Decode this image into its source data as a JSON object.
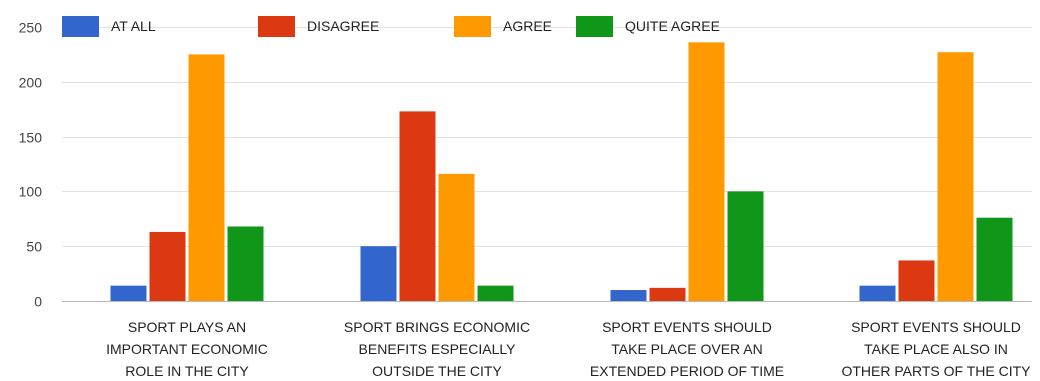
{
  "chart_data": {
    "type": "bar",
    "categories": [
      [
        "SPORT PLAYS AN",
        "IMPORTANT ECONOMIC",
        "ROLE IN THE CITY"
      ],
      [
        "SPORT BRINGS ECONOMIC",
        "BENEFITS ESPECIALLY",
        "OUTSIDE THE CITY"
      ],
      [
        "SPORT EVENTS SHOULD",
        "TAKE PLACE OVER AN",
        "EXTENDED PERIOD OF TIME"
      ],
      [
        "SPORT EVENTS SHOULD",
        "TAKE PLACE ALSO IN",
        "OTHER PARTS OF THE CITY"
      ]
    ],
    "series": [
      {
        "name": "AT ALL",
        "color": "#3366cc",
        "values": [
          14,
          50,
          10,
          14
        ]
      },
      {
        "name": "DISAGREE",
        "color": "#dc3912",
        "values": [
          63,
          173,
          12,
          37
        ]
      },
      {
        "name": "AGREE",
        "color": "#ff9900",
        "values": [
          225,
          116,
          236,
          227
        ]
      },
      {
        "name": "QUITE AGREE",
        "color": "#109618",
        "values": [
          68,
          14,
          100,
          76
        ]
      }
    ],
    "yticks": [
      0,
      50,
      100,
      150,
      200,
      250
    ],
    "ylim": [
      0,
      250
    ],
    "grid": true,
    "legend": "top-left",
    "title": "",
    "xlabel": "",
    "ylabel": ""
  }
}
